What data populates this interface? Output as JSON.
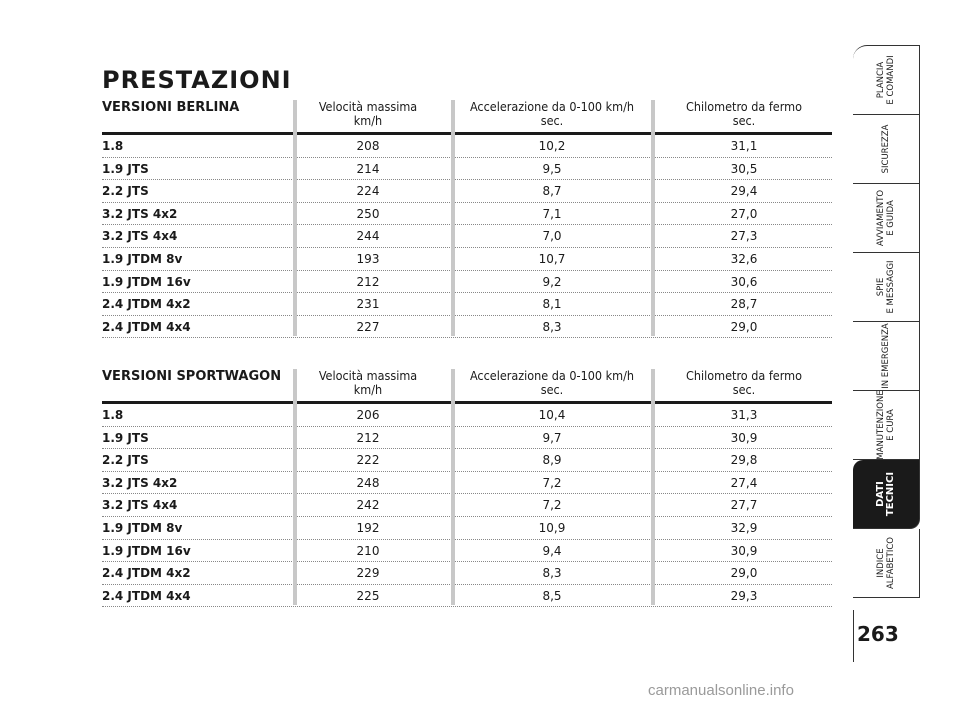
{
  "title": "PRESTAZIONI",
  "columns": {
    "speed": [
      "Velocità massima",
      "km/h"
    ],
    "accel": [
      "Accelerazione da 0-100 km/h",
      "sec."
    ],
    "km": [
      "Chilometro da fermo",
      "sec."
    ]
  },
  "berlina": {
    "label": "VERSIONI BERLINA",
    "rows": [
      {
        "name": "1.8",
        "speed": "208",
        "accel": "10,2",
        "km": "31,1"
      },
      {
        "name": "1.9 JTS",
        "speed": "214",
        "accel": "9,5",
        "km": "30,5"
      },
      {
        "name": "2.2 JTS",
        "speed": "224",
        "accel": "8,7",
        "km": "29,4"
      },
      {
        "name": "3.2 JTS 4x2",
        "speed": "250",
        "accel": "7,1",
        "km": "27,0"
      },
      {
        "name": "3.2 JTS 4x4",
        "speed": "244",
        "accel": "7,0",
        "km": "27,3"
      },
      {
        "name": "1.9 JTDM 8v",
        "speed": "193",
        "accel": "10,7",
        "km": "32,6"
      },
      {
        "name": "1.9 JTDM 16v",
        "speed": "212",
        "accel": "9,2",
        "km": "30,6"
      },
      {
        "name": "2.4 JTDM 4x2",
        "speed": "231",
        "accel": "8,1",
        "km": "28,7"
      },
      {
        "name": "2.4 JTDM 4x4",
        "speed": "227",
        "accel": "8,3",
        "km": "29,0"
      }
    ]
  },
  "sportwagon": {
    "label": "VERSIONI SPORTWAGON",
    "rows": [
      {
        "name": "1.8",
        "speed": "206",
        "accel": "10,4",
        "km": "31,3"
      },
      {
        "name": "1.9 JTS",
        "speed": "212",
        "accel": "9,7",
        "km": "30,9"
      },
      {
        "name": "2.2 JTS",
        "speed": "222",
        "accel": "8,9",
        "km": "29,8"
      },
      {
        "name": "3.2 JTS 4x2",
        "speed": "248",
        "accel": "7,2",
        "km": "27,4"
      },
      {
        "name": "3.2 JTS 4x4",
        "speed": "242",
        "accel": "7,2",
        "km": "27,7"
      },
      {
        "name": "1.9 JTDM 8v",
        "speed": "192",
        "accel": "10,9",
        "km": "32,9"
      },
      {
        "name": "1.9 JTDM 16v",
        "speed": "210",
        "accel": "9,4",
        "km": "30,9"
      },
      {
        "name": "2.4 JTDM 4x2",
        "speed": "229",
        "accel": "8,3",
        "km": "29,0"
      },
      {
        "name": "2.4 JTDM 4x4",
        "speed": "225",
        "accel": "8,5",
        "km": "29,3"
      }
    ]
  },
  "tabs": [
    [
      "PLANCIA",
      "E COMANDI"
    ],
    [
      "SICUREZZA"
    ],
    [
      "AVVIAMENTO",
      "E GUIDA"
    ],
    [
      "SPIE",
      "E MESSAGGI"
    ],
    [
      "IN EMERGENZA"
    ],
    [
      "MANUTENZIONE",
      "E CURA"
    ],
    [
      "DATI",
      "TECNICI"
    ],
    [
      "INDICE",
      "ALFABETICO"
    ]
  ],
  "active_tab": 6,
  "page_number": "263",
  "watermark": "carmanualsonline.info"
}
